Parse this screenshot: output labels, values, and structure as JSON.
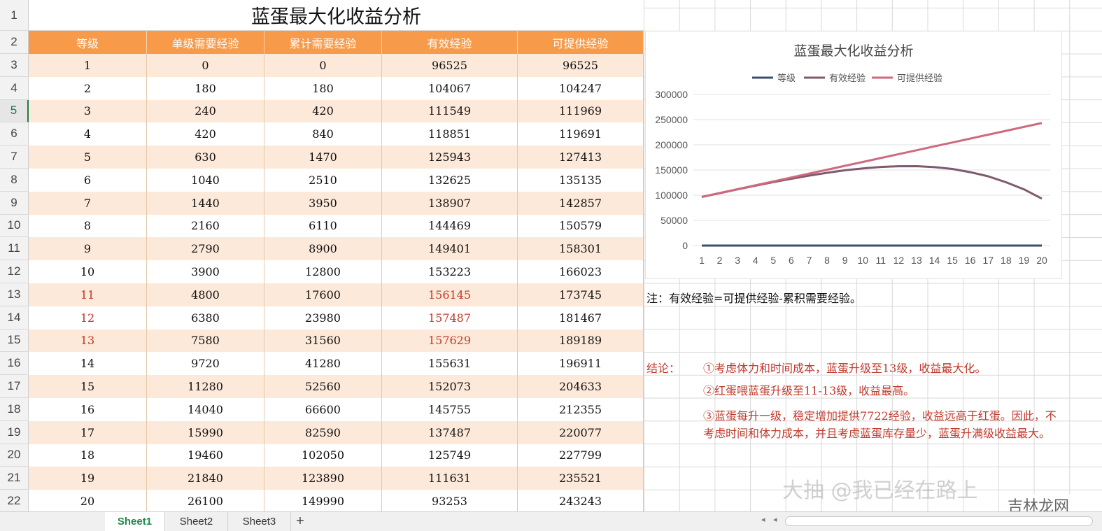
{
  "title": "蓝蛋最大化收益分析",
  "row_numbers": [
    "1",
    "2",
    "3",
    "4",
    "5",
    "6",
    "7",
    "8",
    "9",
    "10",
    "11",
    "12",
    "13",
    "14",
    "15",
    "16",
    "17",
    "18",
    "19",
    "20",
    "21",
    "22"
  ],
  "selected_row": "5",
  "headers": [
    "等级",
    "单级需要经验",
    "累计需要经验",
    "有效经验",
    "可提供经验"
  ],
  "rows": [
    [
      "1",
      "0",
      "0",
      "96525",
      "96525"
    ],
    [
      "2",
      "180",
      "180",
      "104067",
      "104247"
    ],
    [
      "3",
      "240",
      "420",
      "111549",
      "111969"
    ],
    [
      "4",
      "420",
      "840",
      "118851",
      "119691"
    ],
    [
      "5",
      "630",
      "1470",
      "125943",
      "127413"
    ],
    [
      "6",
      "1040",
      "2510",
      "132625",
      "135135"
    ],
    [
      "7",
      "1440",
      "3950",
      "138907",
      "142857"
    ],
    [
      "8",
      "2160",
      "6110",
      "144469",
      "150579"
    ],
    [
      "9",
      "2790",
      "8900",
      "149401",
      "158301"
    ],
    [
      "10",
      "3900",
      "12800",
      "153223",
      "166023"
    ],
    [
      "11",
      "4800",
      "17600",
      "156145",
      "173745"
    ],
    [
      "12",
      "6380",
      "23980",
      "157487",
      "181467"
    ],
    [
      "13",
      "7580",
      "31560",
      "157629",
      "189189"
    ],
    [
      "14",
      "9720",
      "41280",
      "155631",
      "196911"
    ],
    [
      "15",
      "11280",
      "52560",
      "152073",
      "204633"
    ],
    [
      "16",
      "14040",
      "66600",
      "145755",
      "212355"
    ],
    [
      "17",
      "15990",
      "82590",
      "137487",
      "220077"
    ],
    [
      "18",
      "19460",
      "102050",
      "125749",
      "227799"
    ],
    [
      "19",
      "21840",
      "123890",
      "111631",
      "235521"
    ],
    [
      "20",
      "26100",
      "149990",
      "93253",
      "243243"
    ]
  ],
  "highlight_rows": [
    10,
    11,
    12
  ],
  "note": "注：有效经验=可提供经验-累积需要经验。",
  "conclusion": {
    "label": "结论：",
    "items": [
      "①考虑体力和时间成本，蓝蛋升级至13级，收益最大化。",
      "②红蛋喂蓝蛋升级至11-13级，收益最高。",
      "③蓝蛋每升一级，稳定增加提供7722经验，收益远高于红蛋。因此，不",
      "考虑时间和体力成本，并且考虑蓝蛋库存量少，蓝蛋升满级收益最大。"
    ]
  },
  "tabs": [
    "Sheet1",
    "Sheet2",
    "Sheet3"
  ],
  "active_tab": "Sheet1",
  "add_tab_symbol": "+",
  "watermark": "大抽 @我已经在路上",
  "watermark_logo": "吉林龙网",
  "colors": {
    "header_bg": "#f79a4a",
    "band": "#fde9d9",
    "red": "#c0392b",
    "s_level": "#3a4f6b",
    "s_eff": "#7e5a6e",
    "s_prov": "#cf6a7e"
  },
  "chart_data": {
    "type": "line",
    "title": "蓝蛋最大化收益分析",
    "legend_position": "top",
    "x": [
      1,
      2,
      3,
      4,
      5,
      6,
      7,
      8,
      9,
      10,
      11,
      12,
      13,
      14,
      15,
      16,
      17,
      18,
      19,
      20
    ],
    "ylim": [
      0,
      300000
    ],
    "yticks": [
      0,
      50000,
      100000,
      150000,
      200000,
      250000,
      300000
    ],
    "grid": true,
    "series": [
      {
        "name": "等级",
        "values": [
          1,
          2,
          3,
          4,
          5,
          6,
          7,
          8,
          9,
          10,
          11,
          12,
          13,
          14,
          15,
          16,
          17,
          18,
          19,
          20
        ]
      },
      {
        "name": "有效经验",
        "values": [
          96525,
          104067,
          111549,
          118851,
          125943,
          132625,
          138907,
          144469,
          149401,
          153223,
          156145,
          157487,
          157629,
          155631,
          152073,
          145755,
          137487,
          125749,
          111631,
          93253
        ]
      },
      {
        "name": "可提供经验",
        "values": [
          96525,
          104247,
          111969,
          119691,
          127413,
          135135,
          142857,
          150579,
          158301,
          166023,
          173745,
          181467,
          189189,
          196911,
          204633,
          212355,
          220077,
          227799,
          235521,
          243243
        ]
      }
    ]
  }
}
